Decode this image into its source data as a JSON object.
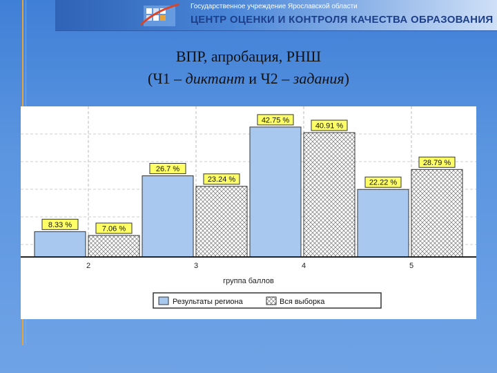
{
  "banner": {
    "org": "Государственное учреждение Ярославской области",
    "title": "ЦЕНТР ОЦЕНКИ И КОНТРОЛЯ КАЧЕСТВА ОБРАЗОВАНИЯ"
  },
  "slide": {
    "title_line1": "ВПР, апробация, РНШ",
    "title_l2_open": "(Ч1 – ",
    "title_l2_it1": "диктант",
    "title_l2_mid": " и Ч2 – ",
    "title_l2_it2": "задания",
    "title_l2_close": ")"
  },
  "colors": {
    "accent_line": "#e8a33a",
    "bar_region": "#a9c8f0",
    "bar_all": "#ffffff",
    "label_bg": "#ffff66",
    "background": "#4d8ad9"
  },
  "chart_data": {
    "type": "bar",
    "categories": [
      "2",
      "3",
      "4",
      "5"
    ],
    "xlabel": "группа баллов",
    "ylabel": "",
    "ylim": [
      0,
      45
    ],
    "grid": true,
    "legend_position": "bottom",
    "series": [
      {
        "name": "Результаты региона",
        "values": [
          8.33,
          26.7,
          42.75,
          22.22
        ],
        "labels": [
          "8.33 %",
          "26.7 %",
          "42.75 %",
          "22.22 %"
        ],
        "fill": "solid"
      },
      {
        "name": "Вся выборка",
        "values": [
          7.06,
          23.24,
          40.91,
          28.79
        ],
        "labels": [
          "7.06 %",
          "23.24 %",
          "40.91 %",
          "28.79 %"
        ],
        "fill": "hatched"
      }
    ]
  }
}
